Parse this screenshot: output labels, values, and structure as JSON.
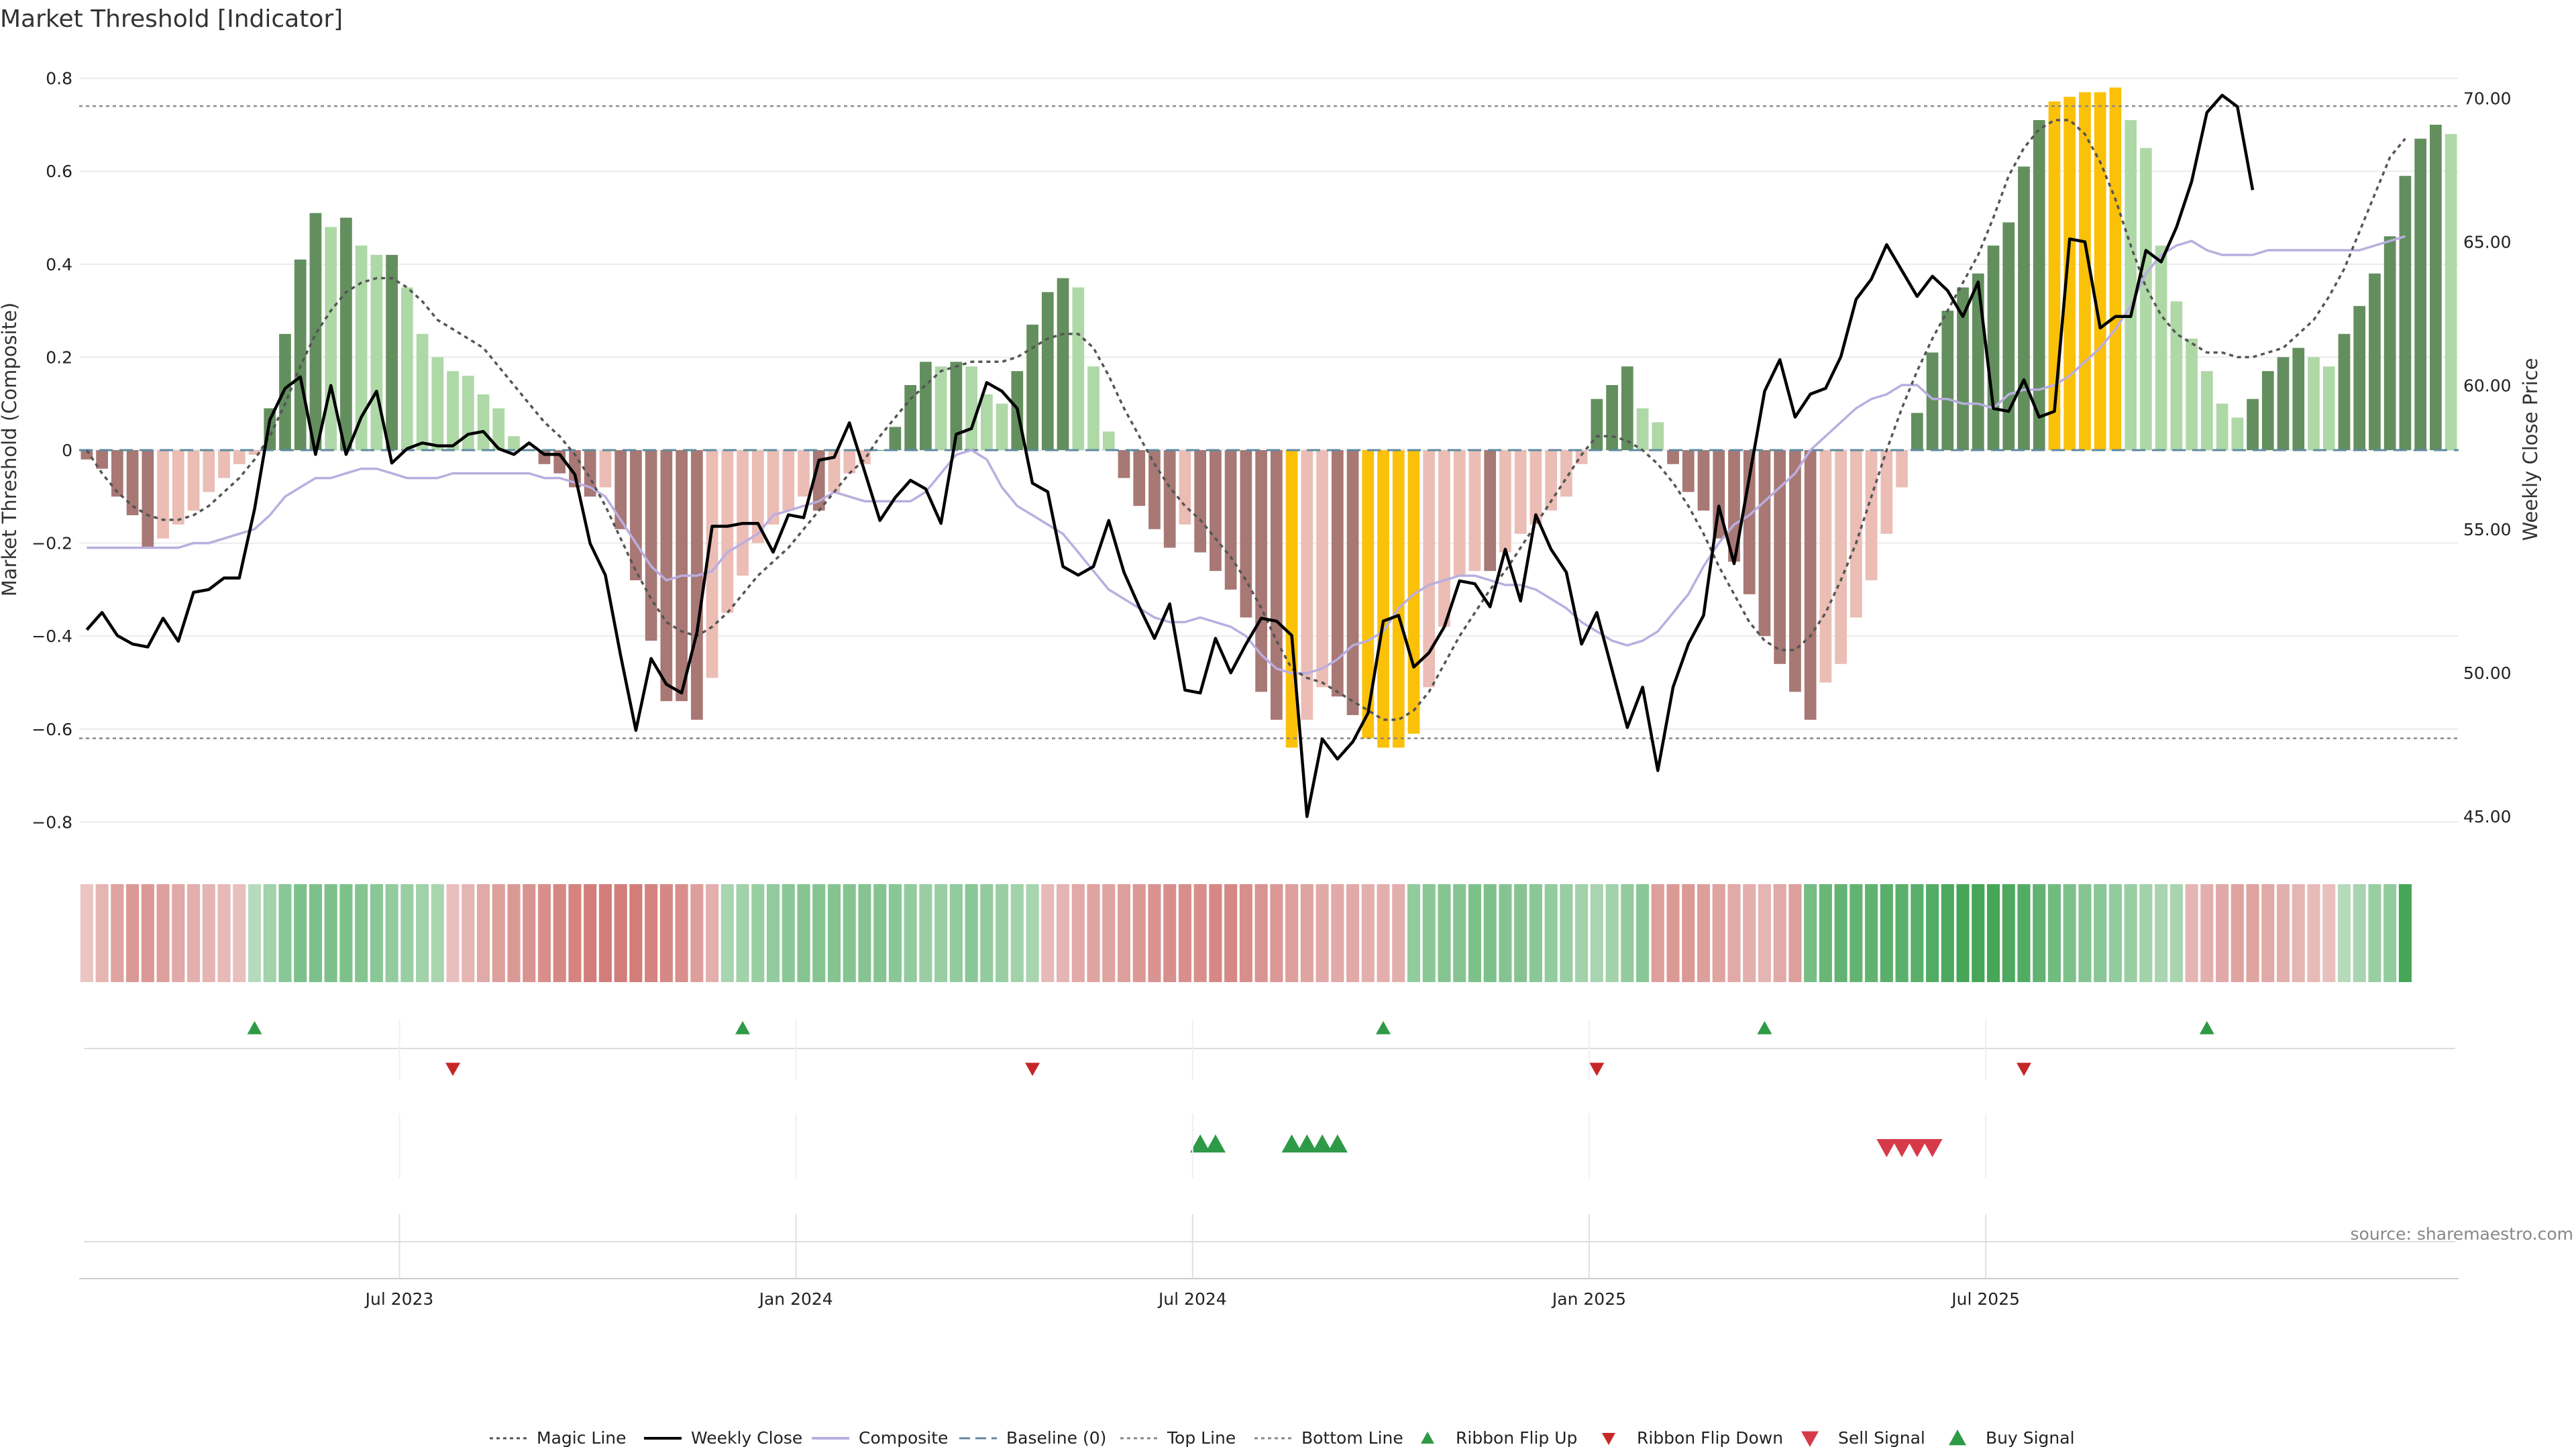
{
  "chart_data": {
    "type": "bar",
    "title": "Market Threshold [Indicator]",
    "source_note": "source: sharemaestro.com",
    "left_axis": {
      "label": "Market Threshold (Composite)",
      "range": [
        -0.85,
        0.85
      ],
      "ticks": [
        0.8,
        0.6,
        0.4,
        0.2,
        0,
        -0.2,
        -0.4,
        -0.6,
        -0.8
      ],
      "tick_labels": [
        "0.8",
        "0.6",
        "0.4",
        "0.2",
        "0",
        "−0.2",
        "−0.4",
        "−0.6",
        "−0.8"
      ]
    },
    "right_axis": {
      "label": "Weekly Close Price",
      "range": [
        44.0,
        71.5
      ],
      "ticks": [
        70,
        65,
        60,
        55,
        50,
        45
      ],
      "tick_labels": [
        "70.00",
        "65.00",
        "60.00",
        "55.00",
        "50.00",
        "45.00"
      ]
    },
    "x_axis": {
      "ticks": [
        {
          "label": "Jul 2023",
          "week": 21
        },
        {
          "label": "Jan 2024",
          "week": 47
        },
        {
          "label": "Jul 2024",
          "week": 73
        },
        {
          "label": "Jan 2025",
          "week": 99
        },
        {
          "label": "Jul 2025",
          "week": 125
        }
      ]
    },
    "grid": true,
    "top_line": 0.74,
    "bottom_line": -0.62,
    "baseline": 0,
    "composite": [
      -0.02,
      -0.04,
      -0.1,
      -0.14,
      -0.21,
      -0.19,
      -0.16,
      -0.13,
      -0.09,
      -0.06,
      -0.03,
      -0.01,
      0.09,
      0.25,
      0.41,
      0.51,
      0.48,
      0.5,
      0.44,
      0.42,
      0.42,
      0.35,
      0.25,
      0.2,
      0.17,
      0.16,
      0.12,
      0.09,
      0.03,
      0.0,
      -0.03,
      -0.05,
      -0.08,
      -0.1,
      -0.08,
      -0.17,
      -0.28,
      -0.41,
      -0.54,
      -0.54,
      -0.58,
      -0.49,
      -0.35,
      -0.27,
      -0.2,
      -0.16,
      -0.13,
      -0.1,
      -0.13,
      -0.09,
      -0.05,
      -0.03,
      0.0,
      0.05,
      0.14,
      0.19,
      0.18,
      0.19,
      0.18,
      0.12,
      0.1,
      0.17,
      0.27,
      0.34,
      0.37,
      0.35,
      0.18,
      0.04,
      -0.06,
      -0.12,
      -0.17,
      -0.21,
      -0.16,
      -0.22,
      -0.26,
      -0.3,
      -0.36,
      -0.52,
      -0.58,
      -0.64,
      -0.58,
      -0.51,
      -0.53,
      -0.57,
      -0.62,
      -0.64,
      -0.64,
      -0.61,
      -0.51,
      -0.38,
      -0.27,
      -0.26,
      -0.26,
      -0.22,
      -0.18,
      -0.16,
      -0.13,
      -0.1,
      -0.03,
      0.11,
      0.14,
      0.18,
      0.09,
      0.06,
      -0.03,
      -0.09,
      -0.13,
      -0.19,
      -0.24,
      -0.31,
      -0.4,
      -0.46,
      -0.52,
      -0.58,
      -0.5,
      -0.46,
      -0.36,
      -0.28,
      -0.18,
      -0.08,
      0.08,
      0.21,
      0.3,
      0.35,
      0.38,
      0.44,
      0.49,
      0.61,
      0.71,
      0.75,
      0.76,
      0.77,
      0.77,
      0.78,
      0.71,
      0.65,
      0.44,
      0.32,
      0.24,
      0.17,
      0.1,
      0.07,
      0.11,
      0.17,
      0.2,
      0.22,
      0.2,
      0.18,
      0.25,
      0.31,
      0.38,
      0.46,
      0.59,
      0.67,
      0.7,
      0.68
    ],
    "bar_colors": {
      "up_strong": "#638f5e",
      "up_weak": "#afd8a7",
      "down_strong": "#a87874",
      "down_weak": "#ebbdb5",
      "extreme": "#fbc108"
    },
    "weekly_close": [
      51.5,
      52.1,
      51.3,
      51.0,
      50.9,
      51.9,
      51.1,
      52.8,
      52.9,
      53.3,
      53.3,
      55.7,
      58.8,
      59.9,
      60.3,
      57.6,
      60.0,
      57.6,
      58.9,
      59.8,
      57.3,
      57.8,
      58.0,
      57.9,
      57.9,
      58.3,
      58.4,
      57.8,
      57.6,
      58.0,
      57.6,
      57.6,
      56.9,
      54.5,
      53.4,
      50.6,
      48.0,
      50.5,
      49.6,
      49.3,
      51.4,
      55.1,
      55.1,
      55.2,
      55.2,
      54.2,
      55.5,
      55.4,
      57.4,
      57.5,
      58.7,
      57.0,
      55.3,
      56.1,
      56.7,
      56.4,
      55.2,
      58.3,
      58.5,
      60.1,
      59.8,
      59.2,
      56.6,
      56.3,
      53.7,
      53.4,
      53.7,
      55.3,
      53.5,
      52.3,
      51.2,
      52.4,
      49.4,
      49.3,
      51.2,
      50.0,
      51.0,
      51.9,
      51.8,
      51.3,
      45.0,
      47.7,
      47.0,
      47.6,
      48.6,
      51.8,
      52.0,
      50.2,
      50.7,
      51.6,
      53.2,
      53.1,
      52.3,
      54.3,
      52.5,
      55.5,
      54.3,
      53.5,
      51.0,
      52.1,
      50.1,
      48.1,
      49.5,
      46.6,
      49.5,
      51.0,
      52.0,
      55.8,
      53.8,
      56.8,
      59.8,
      60.9,
      58.9,
      59.7,
      59.9,
      61.0,
      63.0,
      63.7,
      64.9,
      64.0,
      63.1,
      63.8,
      63.3,
      62.4,
      63.6,
      59.2,
      59.1,
      60.2,
      58.9,
      59.1,
      65.1,
      65.0,
      62.0,
      62.4,
      62.4,
      64.7,
      64.3,
      65.5,
      67.1,
      69.5,
      70.1,
      69.7,
      66.8
    ],
    "magic_line": [
      0.0,
      -0.05,
      -0.09,
      -0.12,
      -0.14,
      -0.15,
      -0.15,
      -0.14,
      -0.12,
      -0.09,
      -0.06,
      -0.02,
      0.03,
      0.1,
      0.18,
      0.25,
      0.3,
      0.34,
      0.36,
      0.37,
      0.37,
      0.35,
      0.32,
      0.28,
      0.26,
      0.24,
      0.22,
      0.18,
      0.14,
      0.1,
      0.06,
      0.03,
      -0.01,
      -0.06,
      -0.12,
      -0.19,
      -0.26,
      -0.32,
      -0.37,
      -0.39,
      -0.4,
      -0.38,
      -0.35,
      -0.31,
      -0.27,
      -0.24,
      -0.21,
      -0.17,
      -0.13,
      -0.09,
      -0.05,
      -0.02,
      0.03,
      0.07,
      0.11,
      0.14,
      0.17,
      0.18,
      0.19,
      0.19,
      0.19,
      0.2,
      0.22,
      0.24,
      0.25,
      0.25,
      0.22,
      0.16,
      0.09,
      0.03,
      -0.03,
      -0.08,
      -0.12,
      -0.15,
      -0.19,
      -0.23,
      -0.28,
      -0.34,
      -0.41,
      -0.47,
      -0.49,
      -0.5,
      -0.52,
      -0.54,
      -0.56,
      -0.58,
      -0.58,
      -0.56,
      -0.52,
      -0.46,
      -0.4,
      -0.35,
      -0.3,
      -0.26,
      -0.21,
      -0.16,
      -0.11,
      -0.06,
      -0.01,
      0.03,
      0.03,
      0.02,
      0.0,
      -0.03,
      -0.07,
      -0.12,
      -0.18,
      -0.25,
      -0.31,
      -0.37,
      -0.41,
      -0.43,
      -0.43,
      -0.4,
      -0.35,
      -0.28,
      -0.2,
      -0.1,
      0.0,
      0.09,
      0.17,
      0.24,
      0.3,
      0.36,
      0.42,
      0.5,
      0.59,
      0.65,
      0.69,
      0.71,
      0.71,
      0.68,
      0.62,
      0.54,
      0.44,
      0.35,
      0.29,
      0.25,
      0.23,
      0.21,
      0.21,
      0.2,
      0.2,
      0.21,
      0.22,
      0.25,
      0.28,
      0.33,
      0.39,
      0.47,
      0.55,
      0.63,
      0.67
    ],
    "composite_smooth": [
      -0.21,
      -0.21,
      -0.21,
      -0.21,
      -0.21,
      -0.21,
      -0.21,
      -0.2,
      -0.2,
      -0.19,
      -0.18,
      -0.17,
      -0.14,
      -0.1,
      -0.08,
      -0.06,
      -0.06,
      -0.05,
      -0.04,
      -0.04,
      -0.05,
      -0.06,
      -0.06,
      -0.06,
      -0.05,
      -0.05,
      -0.05,
      -0.05,
      -0.05,
      -0.05,
      -0.06,
      -0.06,
      -0.07,
      -0.08,
      -0.1,
      -0.15,
      -0.2,
      -0.25,
      -0.28,
      -0.27,
      -0.27,
      -0.26,
      -0.22,
      -0.2,
      -0.18,
      -0.14,
      -0.13,
      -0.12,
      -0.11,
      -0.09,
      -0.1,
      -0.11,
      -0.11,
      -0.11,
      -0.11,
      -0.09,
      -0.05,
      -0.01,
      0.0,
      -0.02,
      -0.08,
      -0.12,
      -0.14,
      -0.16,
      -0.18,
      -0.22,
      -0.26,
      -0.3,
      -0.32,
      -0.34,
      -0.36,
      -0.37,
      -0.37,
      -0.36,
      -0.37,
      -0.38,
      -0.4,
      -0.44,
      -0.47,
      -0.48,
      -0.48,
      -0.47,
      -0.45,
      -0.42,
      -0.41,
      -0.39,
      -0.34,
      -0.31,
      -0.29,
      -0.28,
      -0.27,
      -0.27,
      -0.28,
      -0.29,
      -0.29,
      -0.3,
      -0.32,
      -0.34,
      -0.37,
      -0.39,
      -0.41,
      -0.42,
      -0.41,
      -0.39,
      -0.35,
      -0.31,
      -0.25,
      -0.2,
      -0.16,
      -0.14,
      -0.11,
      -0.08,
      -0.05,
      0.0,
      0.03,
      0.06,
      0.09,
      0.11,
      0.12,
      0.14,
      0.14,
      0.11,
      0.11,
      0.1,
      0.1,
      0.09,
      0.12,
      0.13,
      0.13,
      0.14,
      0.16,
      0.19,
      0.22,
      0.26,
      0.31,
      0.38,
      0.42,
      0.44,
      0.45,
      0.43,
      0.42,
      0.42,
      0.42,
      0.43,
      0.43,
      0.43,
      0.43,
      0.43,
      0.43,
      0.43,
      0.44,
      0.45,
      0.46
    ],
    "ribbon": {
      "sign": [
        -1,
        -1,
        -1,
        -1,
        -1,
        -1,
        -1,
        -1,
        -1,
        -1,
        -1,
        1,
        1,
        1,
        1,
        1,
        1,
        1,
        1,
        1,
        1,
        1,
        1,
        1,
        -1,
        -1,
        -1,
        -1,
        -1,
        -1,
        -1,
        -1,
        -1,
        -1,
        -1,
        -1,
        -1,
        -1,
        -1,
        -1,
        -1,
        -1,
        1,
        1,
        1,
        1,
        1,
        1,
        1,
        1,
        1,
        1,
        1,
        1,
        1,
        1,
        1,
        1,
        1,
        1,
        1,
        1,
        1,
        -1,
        -1,
        -1,
        -1,
        -1,
        -1,
        -1,
        -1,
        -1,
        -1,
        -1,
        -1,
        -1,
        -1,
        -1,
        -1,
        -1,
        -1,
        -1,
        -1,
        -1,
        -1,
        -1,
        -1,
        1,
        1,
        1,
        1,
        1,
        1,
        1,
        1,
        1,
        1,
        1,
        1,
        1,
        1,
        1,
        1,
        -1,
        -1,
        -1,
        -1,
        -1,
        -1,
        -1,
        -1,
        -1,
        -1,
        1,
        1,
        1,
        1,
        1,
        1,
        1,
        1,
        1,
        1,
        1,
        1,
        1,
        1,
        1,
        1,
        1,
        1,
        1,
        1,
        1,
        1,
        1,
        1,
        1,
        -1,
        -1,
        -1,
        -1,
        -1,
        -1,
        -1,
        -1,
        -1,
        -1,
        1,
        1,
        1,
        1,
        1
      ],
      "intensity": [
        0.2,
        0.35,
        0.5,
        0.6,
        0.6,
        0.55,
        0.45,
        0.4,
        0.35,
        0.3,
        0.25,
        0.2,
        0.35,
        0.5,
        0.6,
        0.6,
        0.6,
        0.6,
        0.55,
        0.5,
        0.45,
        0.4,
        0.35,
        0.3,
        0.25,
        0.35,
        0.45,
        0.55,
        0.6,
        0.65,
        0.7,
        0.75,
        0.8,
        0.85,
        0.85,
        0.85,
        0.85,
        0.8,
        0.75,
        0.7,
        0.55,
        0.4,
        0.3,
        0.35,
        0.4,
        0.45,
        0.5,
        0.55,
        0.55,
        0.55,
        0.55,
        0.55,
        0.55,
        0.5,
        0.45,
        0.4,
        0.4,
        0.45,
        0.5,
        0.45,
        0.4,
        0.35,
        0.3,
        0.3,
        0.35,
        0.45,
        0.5,
        0.5,
        0.55,
        0.6,
        0.65,
        0.7,
        0.7,
        0.7,
        0.75,
        0.75,
        0.7,
        0.65,
        0.6,
        0.55,
        0.5,
        0.45,
        0.45,
        0.45,
        0.4,
        0.4,
        0.4,
        0.45,
        0.5,
        0.55,
        0.55,
        0.6,
        0.6,
        0.55,
        0.55,
        0.5,
        0.45,
        0.4,
        0.35,
        0.3,
        0.35,
        0.45,
        0.5,
        0.55,
        0.6,
        0.6,
        0.55,
        0.5,
        0.45,
        0.4,
        0.35,
        0.45,
        0.55,
        0.65,
        0.75,
        0.8,
        0.8,
        0.8,
        0.85,
        0.85,
        0.85,
        0.9,
        0.95,
        1.0,
        1.0,
        1.0,
        0.95,
        0.9,
        0.8,
        0.7,
        0.6,
        0.55,
        0.5,
        0.45,
        0.4,
        0.35,
        0.3,
        0.3,
        0.35,
        0.4,
        0.45,
        0.5,
        0.5,
        0.45,
        0.4,
        0.35,
        0.3,
        0.25,
        0.2,
        0.3,
        0.4,
        0.45
      ]
    },
    "ribbon_colors": {
      "up": "#46a658",
      "down": "#cc6d69"
    },
    "ribbon_flip_up_weeks": [
      11,
      43,
      85,
      110,
      139
    ],
    "ribbon_flip_down_weeks": [
      24,
      62,
      99,
      127
    ],
    "buy_signal_weeks": [
      73,
      74,
      79,
      80,
      81,
      82
    ],
    "sell_signal_weeks": [
      118,
      119,
      120,
      121
    ],
    "legend": [
      {
        "label": "Magic Line",
        "kind": "dotted",
        "color": "#555555"
      },
      {
        "label": "Weekly Close",
        "kind": "solid",
        "color": "#000000"
      },
      {
        "label": "Composite",
        "kind": "solid",
        "color": "#b9aee0"
      },
      {
        "label": "Baseline (0)",
        "kind": "dashed",
        "color": "#5e8aa0"
      },
      {
        "label": "Top Line",
        "kind": "dotted",
        "color": "#888888"
      },
      {
        "label": "Bottom Line",
        "kind": "dotted",
        "color": "#888888"
      },
      {
        "label": "Ribbon Flip Up",
        "kind": "tri-up",
        "color": "#2e9a47"
      },
      {
        "label": "Ribbon Flip Down",
        "kind": "tri-down",
        "color": "#c62828"
      },
      {
        "label": "Sell Signal",
        "kind": "tri-down-lg",
        "color": "#d63a49"
      },
      {
        "label": "Buy Signal",
        "kind": "tri-up-lg",
        "color": "#2e9a47"
      }
    ]
  }
}
